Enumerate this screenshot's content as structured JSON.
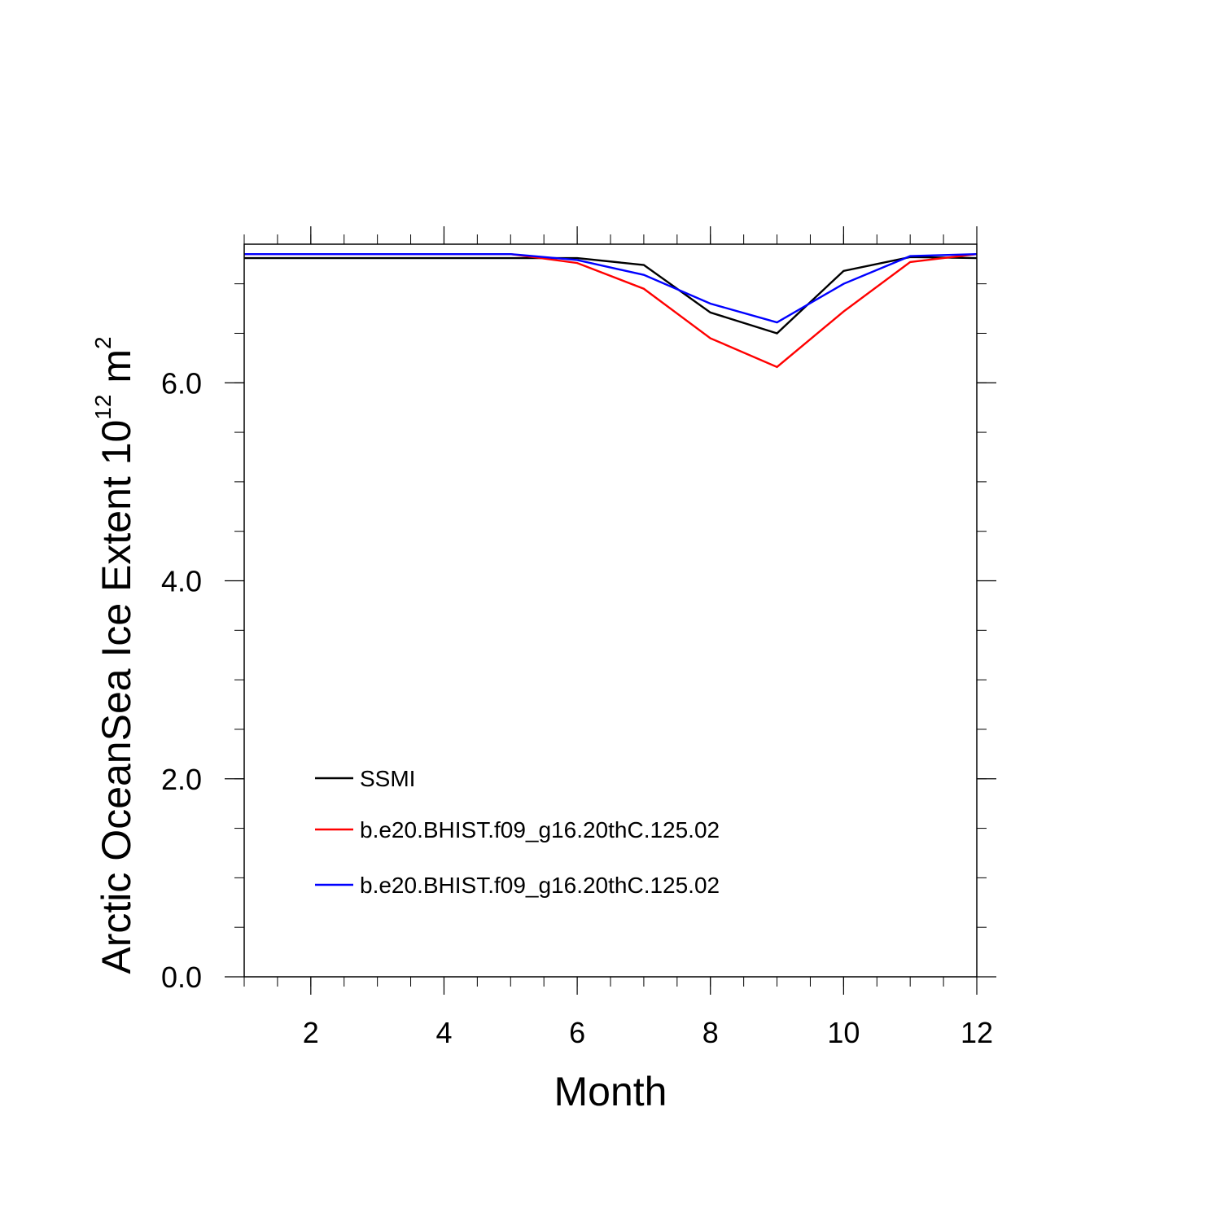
{
  "chart_data": {
    "type": "line",
    "title": "",
    "xlabel": "Month",
    "ylabel_main": "Arctic OceanSea Ice Extent 10",
    "ylabel_exponent": "12",
    "ylabel_unit": " m",
    "ylabel_unit_exponent": "2",
    "xlim": [
      1,
      12
    ],
    "ylim": [
      0,
      7.4
    ],
    "x_ticks": [
      2,
      4,
      6,
      8,
      10,
      12
    ],
    "x_tick_labels": [
      "2",
      "4",
      "6",
      "8",
      "10",
      "12"
    ],
    "y_ticks": [
      0,
      2,
      4,
      6
    ],
    "y_tick_labels": [
      "0.0",
      "2.0",
      "4.0",
      "6.0"
    ],
    "grid": false,
    "legend_position": "lower-left",
    "x": [
      1,
      2,
      3,
      4,
      5,
      6,
      7,
      8,
      9,
      10,
      11,
      12
    ],
    "series": [
      {
        "name": "SSMI",
        "color": "#000000",
        "values": [
          7.26,
          7.26,
          7.26,
          7.26,
          7.26,
          7.26,
          7.19,
          6.71,
          6.5,
          7.13,
          7.27,
          7.26
        ]
      },
      {
        "name": "b.e20.BHIST.f09_g16.20thC.125.02",
        "color": "#ff0000",
        "values": [
          7.3,
          7.3,
          7.3,
          7.3,
          7.3,
          7.21,
          6.95,
          6.45,
          6.16,
          6.72,
          7.22,
          7.3
        ]
      },
      {
        "name": "b.e20.BHIST.f09_g16.20thC.125.02",
        "color": "#0000ff",
        "values": [
          7.3,
          7.3,
          7.3,
          7.3,
          7.3,
          7.24,
          7.09,
          6.8,
          6.61,
          7.0,
          7.28,
          7.3
        ]
      }
    ]
  }
}
